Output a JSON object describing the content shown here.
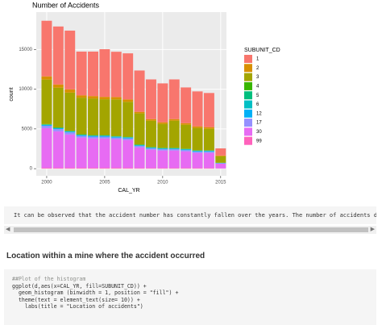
{
  "chart_data": {
    "type": "stacked-bar",
    "title": "Number of Accidents",
    "x_label": "CAL_YR",
    "y_label": "count",
    "legend_title": "SUBUNIT_CD",
    "x": [
      2000,
      2001,
      2002,
      2003,
      2004,
      2005,
      2006,
      2007,
      2008,
      2009,
      2010,
      2011,
      2012,
      2013,
      2014,
      2015
    ],
    "series": [
      {
        "name": "1",
        "color": "#F8766D",
        "values": [
          7000,
          7300,
          7400,
          5500,
          5600,
          6000,
          5700,
          5800,
          5200,
          5000,
          4900,
          5000,
          4500,
          4400,
          4300,
          900
        ]
      },
      {
        "name": "2",
        "color": "#D89000",
        "values": [
          400,
          400,
          400,
          300,
          300,
          300,
          300,
          300,
          200,
          200,
          200,
          200,
          200,
          200,
          200,
          100
        ]
      },
      {
        "name": "3",
        "color": "#A3A500",
        "values": [
          5600,
          5000,
          4800,
          4600,
          4600,
          4500,
          4600,
          4400,
          3900,
          3300,
          3000,
          3400,
          3000,
          2800,
          2700,
          800
        ]
      },
      {
        "name": "4",
        "color": "#39B600",
        "values": [
          50,
          50,
          50,
          50,
          50,
          50,
          50,
          50,
          50,
          50,
          50,
          50,
          50,
          50,
          50,
          20
        ]
      },
      {
        "name": "5",
        "color": "#00BF7D",
        "values": [
          30,
          30,
          30,
          30,
          30,
          30,
          30,
          30,
          30,
          30,
          30,
          30,
          30,
          30,
          30,
          10
        ]
      },
      {
        "name": "6",
        "color": "#00BFC4",
        "values": [
          30,
          30,
          30,
          30,
          30,
          30,
          30,
          30,
          30,
          30,
          30,
          30,
          30,
          30,
          30,
          10
        ]
      },
      {
        "name": "12",
        "color": "#00B0F6",
        "values": [
          100,
          100,
          100,
          100,
          100,
          100,
          100,
          100,
          80,
          80,
          80,
          80,
          80,
          80,
          80,
          30
        ]
      },
      {
        "name": "17",
        "color": "#9590FF",
        "values": [
          300,
          280,
          260,
          220,
          220,
          220,
          200,
          200,
          180,
          160,
          160,
          160,
          150,
          150,
          150,
          50
        ]
      },
      {
        "name": "30",
        "color": "#E76BF3",
        "values": [
          5000,
          4600,
          4200,
          3800,
          3700,
          3700,
          3600,
          3500,
          2600,
          2300,
          2200,
          2200,
          2100,
          1900,
          1900,
          600
        ]
      },
      {
        "name": "99",
        "color": "#FF62BC",
        "values": [
          100,
          100,
          100,
          100,
          100,
          100,
          100,
          100,
          80,
          80,
          80,
          80,
          80,
          80,
          80,
          30
        ]
      }
    ],
    "xlim": [
      1999.1,
      2015.5
    ],
    "ylim": [
      -900,
      19700
    ],
    "xticks": [
      2000,
      2005,
      2010,
      2015
    ],
    "yticks": [
      0,
      5000,
      10000,
      15000
    ],
    "grid": true
  },
  "output_text": "It can be observed that the accident number has constantly fallen over the years. The number of accidents drastically",
  "heading": "Location within a mine where the accident occurred",
  "code_lines": [
    "##Plot of the histogram",
    "ggplot(d,aes(x=CAL_YR, fill=SUBUNIT_CD)) +",
    "  geom_histogram (binwidth = 1, position = \"fill\") +",
    "  theme(text = element_text(size= 10)) +",
    "    labs(title = \"Location of accidents\")"
  ]
}
